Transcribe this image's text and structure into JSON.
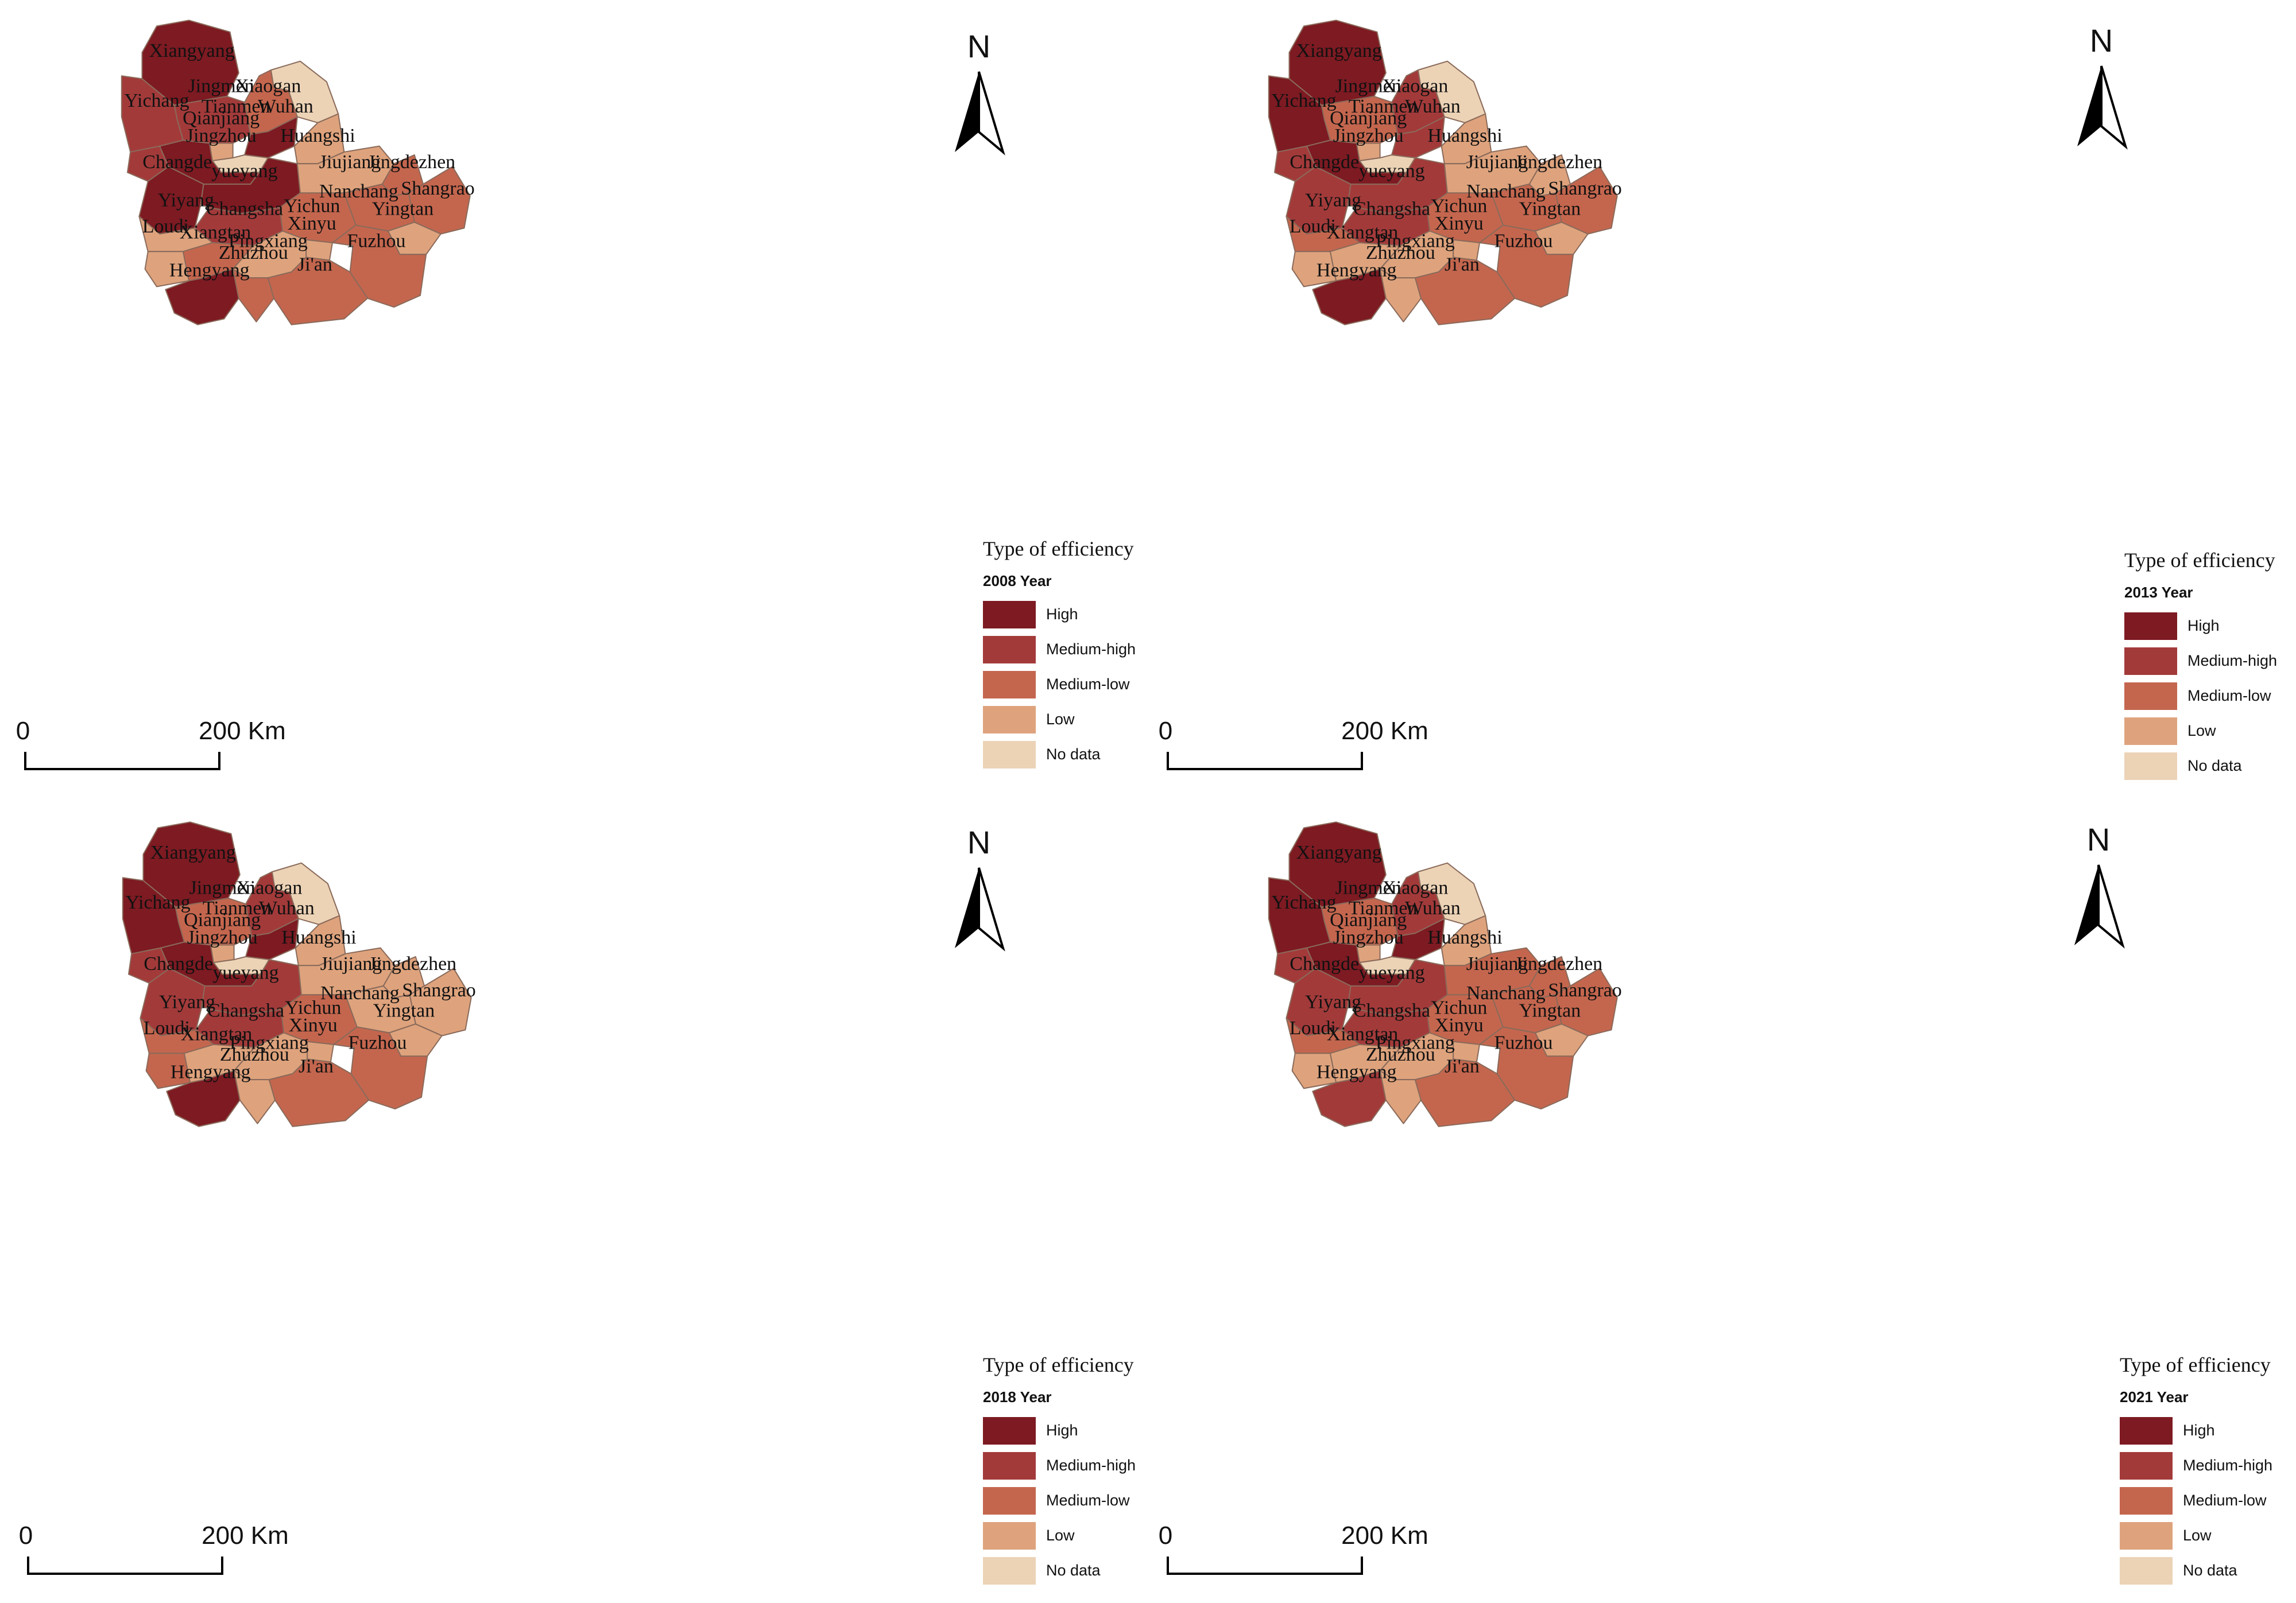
{
  "legend": {
    "title": "Type of efficiency",
    "classes": [
      {
        "key": "high",
        "label": "High",
        "color": "#7d1a22"
      },
      {
        "key": "mediumHigh",
        "label": "Medium-high",
        "color": "#a33a3a"
      },
      {
        "key": "mediumLow",
        "label": "Medium-low",
        "color": "#c4664e"
      },
      {
        "key": "low",
        "label": "Low",
        "color": "#dea37d"
      },
      {
        "key": "noData",
        "label": "No data",
        "color": "#ecd3b6"
      }
    ]
  },
  "north_label": "N",
  "scale_bar": {
    "start_label": "0",
    "end_label": "200 Km"
  },
  "cities": [
    "Xiangyang",
    "Jingmen",
    "Xiaogan",
    "Yichang",
    "Tianmen",
    "Wuhan",
    "Qianjiang",
    "Jingzhou",
    "Huangshi",
    "Changde",
    "yueyang",
    "Jiujiang",
    "Jingdezhen",
    "Shangrao",
    "Nanchang",
    "Yiyang",
    "Changsha",
    "Yichun",
    "Yingtan",
    "Loudi",
    "Xinyu",
    "Xiangtan",
    "Pingxiang",
    "Fuzhou",
    "Zhuzhou",
    "Ji'an",
    "Hengyang"
  ],
  "maps": [
    {
      "year_label": "2008 Year",
      "classes": {
        "Xiangyang": "high",
        "Jingmen": "mediumHigh",
        "Xiaogan": "mediumLow",
        "Yichang": "mediumHigh",
        "Tianmen": "low",
        "Wuhan": "high",
        "Qianjiang": "noData",
        "Jingzhou": "high",
        "Huangshi": "low",
        "Changde": "high",
        "yueyang": "high",
        "Jiujiang": "low",
        "Jingdezhen": "mediumLow",
        "Shangrao": "mediumLow",
        "Nanchang": "mediumLow",
        "Yiyang": "low",
        "Changsha": "mediumHigh",
        "Yichun": "mediumLow",
        "Yingtan": "low",
        "Loudi": "low",
        "Xinyu": "low",
        "Xiangtan": "mediumLow",
        "Pingxiang": "low",
        "Fuzhou": "mediumLow",
        "Zhuzhou": "mediumLow",
        "Ji'an": "mediumLow",
        "Hengyang": "high",
        "Xiaogan_east": "noData",
        "Yichang_south": "mediumHigh"
      }
    },
    {
      "year_label": "2013 Year",
      "classes": {
        "Xiangyang": "high",
        "Jingmen": "mediumLow",
        "Xiaogan": "mediumHigh",
        "Yichang": "high",
        "Tianmen": "low",
        "Wuhan": "mediumHigh",
        "Qianjiang": "noData",
        "Jingzhou": "high",
        "Huangshi": "low",
        "Changde": "mediumHigh",
        "yueyang": "mediumHigh",
        "Jiujiang": "low",
        "Jingdezhen": "low",
        "Shangrao": "mediumLow",
        "Nanchang": "mediumLow",
        "Yiyang": "mediumLow",
        "Changsha": "mediumHigh",
        "Yichun": "mediumLow",
        "Yingtan": "low",
        "Loudi": "low",
        "Xinyu": "low",
        "Xiangtan": "low",
        "Pingxiang": "low",
        "Fuzhou": "mediumLow",
        "Zhuzhou": "low",
        "Ji'an": "mediumLow",
        "Hengyang": "high",
        "Xiaogan_east": "noData",
        "Yichang_south": "mediumHigh"
      }
    },
    {
      "year_label": "2018 Year",
      "classes": {
        "Xiangyang": "high",
        "Jingmen": "mediumLow",
        "Xiaogan": "mediumHigh",
        "Yichang": "high",
        "Tianmen": "low",
        "Wuhan": "high",
        "Qianjiang": "noData",
        "Jingzhou": "high",
        "Huangshi": "low",
        "Changde": "mediumHigh",
        "yueyang": "mediumHigh",
        "Jiujiang": "low",
        "Jingdezhen": "low",
        "Shangrao": "low",
        "Nanchang": "low",
        "Yiyang": "mediumLow",
        "Changsha": "mediumHigh",
        "Yichun": "mediumLow",
        "Yingtan": "low",
        "Loudi": "mediumLow",
        "Xinyu": "low",
        "Xiangtan": "low",
        "Pingxiang": "low",
        "Fuzhou": "mediumLow",
        "Zhuzhou": "low",
        "Ji'an": "mediumLow",
        "Hengyang": "high",
        "Xiaogan_east": "noData",
        "Yichang_south": "mediumHigh"
      }
    },
    {
      "year_label": "2021 Year",
      "classes": {
        "Xiangyang": "high",
        "Jingmen": "mediumLow",
        "Xiaogan": "mediumHigh",
        "Yichang": "high",
        "Tianmen": "low",
        "Wuhan": "high",
        "Qianjiang": "noData",
        "Jingzhou": "high",
        "Huangshi": "low",
        "Changde": "mediumHigh",
        "yueyang": "mediumHigh",
        "Jiujiang": "mediumLow",
        "Jingdezhen": "mediumLow",
        "Shangrao": "mediumLow",
        "Nanchang": "mediumLow",
        "Yiyang": "mediumLow",
        "Changsha": "mediumHigh",
        "Yichun": "mediumLow",
        "Yingtan": "low",
        "Loudi": "low",
        "Xinyu": "low",
        "Xiangtan": "low",
        "Pingxiang": "low",
        "Fuzhou": "mediumLow",
        "Zhuzhou": "low",
        "Ji'an": "mediumLow",
        "Hengyang": "mediumHigh",
        "Xiaogan_east": "noData",
        "Yichang_south": "mediumHigh"
      }
    }
  ]
}
